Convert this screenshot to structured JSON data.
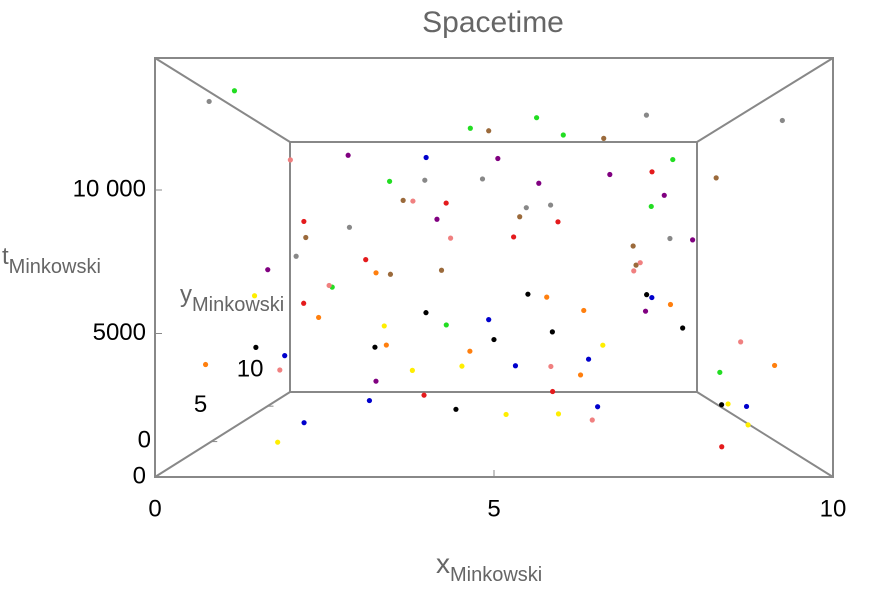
{
  "chart_data": {
    "type": "scatter3d",
    "title": "Spacetime",
    "xlabel": "x",
    "xlabel_subscript": "Minkowski",
    "ylabel": "y",
    "ylabel_subscript": "Minkowski",
    "tlabel": "t",
    "tlabel_subscript": "Minkowski",
    "xlim": [
      0,
      10
    ],
    "xticks": [
      0,
      5,
      10
    ],
    "ylim": [
      0,
      12
    ],
    "yticks": [
      0,
      5,
      10
    ],
    "tlim": [
      0,
      14600
    ],
    "tticks": [
      0,
      5000,
      {
        "value": 10000,
        "label": "10 000"
      }
    ],
    "series": [
      {
        "color": "#888888",
        "x": [
          0.5,
          2.1,
          3.4,
          4.8,
          6.2,
          7.5,
          8.9,
          9.4,
          1.2,
          5.6
        ],
        "y": [
          2,
          8,
          11,
          5,
          9,
          3,
          10,
          1,
          7,
          6
        ],
        "t": [
          13500,
          9200,
          12100,
          11000,
          10400,
          13200,
          8800,
          12600,
          7800,
          9900
        ]
      },
      {
        "color": "#9b6a3b",
        "x": [
          1.8,
          3.0,
          4.2,
          5.5,
          6.8,
          8.0,
          9.1,
          2.6,
          7.2,
          4.9
        ],
        "y": [
          4,
          10,
          1,
          7,
          3,
          9,
          6,
          11,
          2,
          8
        ],
        "t": [
          8500,
          10800,
          7200,
          9600,
          12300,
          7400,
          11200,
          6900,
          8100,
          13800
        ]
      },
      {
        "color": "#e41a1c",
        "x": [
          1.5,
          2.9,
          4.0,
          5.3,
          6.5,
          7.8,
          3.6,
          8.6,
          0.8,
          6.0
        ],
        "y": [
          6,
          3,
          9,
          1,
          11,
          5,
          8,
          2,
          10,
          4
        ],
        "t": [
          9300,
          7600,
          10500,
          8400,
          9800,
          11300,
          1200,
          600,
          5400,
          2300
        ]
      },
      {
        "color": "#ff7f0e",
        "x": [
          0.6,
          1.9,
          3.3,
          4.5,
          5.9,
          7.1,
          8.4,
          9.6,
          2.4,
          6.6
        ],
        "y": [
          1,
          5,
          2,
          9,
          4,
          11,
          7,
          3,
          10,
          6
        ],
        "t": [
          3800,
          5200,
          4400,
          3100,
          6100,
          4900,
          5600,
          3500,
          7000,
          2600
        ]
      },
      {
        "color": "#000000",
        "x": [
          1.1,
          2.5,
          3.8,
          5.0,
          6.3,
          7.6,
          8.8,
          4.4,
          9.2,
          5.8
        ],
        "y": [
          3,
          9,
          5,
          1,
          10,
          4,
          8,
          2,
          6,
          11
        ],
        "t": [
          4200,
          3300,
          5400,
          4700,
          3900,
          6200,
          4400,
          2000,
          1300,
          5800
        ]
      },
      {
        "color": "#800080",
        "x": [
          2.2,
          4.1,
          6.0,
          7.9,
          9.0,
          1.0,
          3.2,
          5.1,
          6.9,
          8.2
        ],
        "y": [
          7,
          2,
          10,
          4,
          8,
          5,
          1,
          11,
          3,
          9
        ],
        "t": [
          12400,
          9100,
          11700,
          10200,
          8600,
          7200,
          3200,
          13300,
          10900,
          5100
        ]
      },
      {
        "color": "#22dd22",
        "x": [
          0.9,
          2.7,
          4.6,
          6.4,
          8.3,
          3.9,
          7.4,
          1.6,
          5.7,
          9.0
        ],
        "y": [
          2,
          10,
          4,
          8,
          6,
          11,
          1,
          9,
          3,
          5
        ],
        "t": [
          13900,
          11800,
          12900,
          13600,
          12000,
          4100,
          9500,
          6300,
          13100,
          2900
        ]
      },
      {
        "color": "#0000cc",
        "x": [
          1.3,
          3.1,
          4.9,
          6.7,
          8.5,
          2.0,
          5.4,
          7.0,
          9.3,
          3.7
        ],
        "y": [
          5,
          1,
          8,
          3,
          10,
          2,
          6,
          9,
          4,
          7
        ],
        "t": [
          3600,
          2500,
          4800,
          1900,
          5700,
          1500,
          3000,
          2700,
          1700,
          12300
        ]
      },
      {
        "color": "#ffee00",
        "x": [
          1.7,
          3.5,
          5.2,
          7.3,
          8.7,
          2.8,
          6.1,
          4.3,
          9.5,
          0.4
        ],
        "y": [
          1,
          6,
          3,
          9,
          2,
          8,
          4,
          10,
          5,
          7
        ],
        "t": [
          1000,
          2800,
          1600,
          3400,
          2200,
          4500,
          1400,
          2100,
          700,
          6000
        ]
      },
      {
        "color": "#f08080",
        "x": [
          0.7,
          2.3,
          4.0,
          5.9,
          7.7,
          9.2,
          3.3,
          6.5,
          1.4,
          8.1
        ],
        "y": [
          8,
          3,
          11,
          2,
          6,
          4,
          9,
          1,
          5,
          10
        ],
        "t": [
          2400,
          6600,
          8900,
          3600,
          7500,
          4300,
          10600,
          1800,
          11800,
          7100
        ]
      }
    ]
  }
}
